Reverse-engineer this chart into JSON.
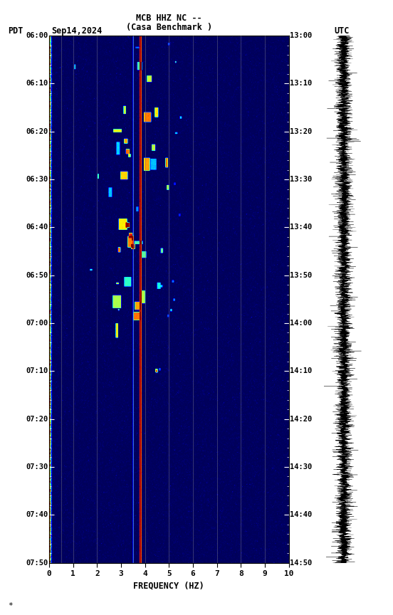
{
  "title_line1": "MCB HHZ NC --",
  "title_line2": "(Casa Benchmark )",
  "label_left": "PDT",
  "label_date": "Sep14,2024",
  "label_right": "UTC",
  "pdt_times": [
    "06:00",
    "06:10",
    "06:20",
    "06:30",
    "06:40",
    "06:50",
    "07:00",
    "07:10",
    "07:20",
    "07:30",
    "07:40",
    "07:50"
  ],
  "utc_times": [
    "13:00",
    "13:10",
    "13:20",
    "13:30",
    "13:40",
    "13:50",
    "14:00",
    "14:10",
    "14:20",
    "14:30",
    "14:40",
    "14:50"
  ],
  "freq_min": 0,
  "freq_max": 10,
  "freq_label": "FREQUENCY (HZ)",
  "freq_ticks": [
    0,
    1,
    2,
    3,
    4,
    5,
    6,
    7,
    8,
    9,
    10
  ],
  "vline_freqs": [
    0.5,
    1.0,
    2.0,
    3.5,
    4.0,
    5.0,
    6.0,
    7.0,
    8.0,
    9.0
  ],
  "vline_color": "#808000",
  "bright_line_freq": 3.82,
  "background_color": "#ffffff",
  "colormap": "jet"
}
